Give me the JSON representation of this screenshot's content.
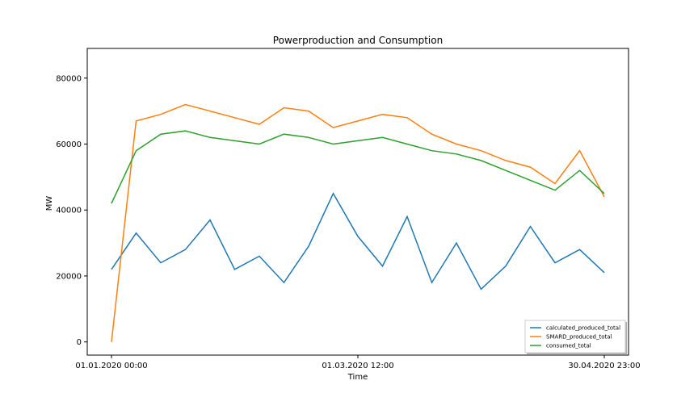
{
  "chart_data": {
    "type": "line",
    "title": "Powerproduction and Consumption",
    "xlabel": "Time",
    "ylabel": "MW",
    "x_ticks": [
      "01.01.2020 00:00",
      "01.03.2020 12:00",
      "30.04.2020 23:00"
    ],
    "x_range": [
      "01.01.2020 00:00",
      "30.04.2020 23:00"
    ],
    "y_ticks": [
      0,
      20000,
      40000,
      60000,
      80000
    ],
    "ylim": [
      -4000,
      89000
    ],
    "grid": false,
    "legend_position": "lower-right",
    "x_dates": [
      "2020-01-01",
      "2020-01-07",
      "2020-01-13",
      "2020-01-19",
      "2020-01-25",
      "2020-01-31",
      "2020-02-06",
      "2020-02-12",
      "2020-02-18",
      "2020-02-24",
      "2020-03-01",
      "2020-03-07",
      "2020-03-13",
      "2020-03-19",
      "2020-03-25",
      "2020-03-31",
      "2020-04-06",
      "2020-04-12",
      "2020-04-18",
      "2020-04-24",
      "2020-04-30"
    ],
    "series": [
      {
        "name": "calculated_produced_total",
        "color": "#1f77b4",
        "values": [
          22000,
          33000,
          24000,
          28000,
          37000,
          22000,
          26000,
          18000,
          29000,
          45000,
          32000,
          23000,
          38000,
          18000,
          30000,
          16000,
          23000,
          35000,
          24000,
          28000,
          21000
        ]
      },
      {
        "name": "SMARD_produced_total",
        "color": "#ff7f0e",
        "values": [
          0,
          67000,
          69000,
          72000,
          70000,
          68000,
          66000,
          71000,
          70000,
          65000,
          67000,
          69000,
          68000,
          63000,
          60000,
          58000,
          55000,
          53000,
          48000,
          58000,
          44000
        ]
      },
      {
        "name": "consumed_total",
        "color": "#2ca02c",
        "values": [
          42000,
          58000,
          63000,
          64000,
          62000,
          61000,
          60000,
          63000,
          62000,
          60000,
          61000,
          62000,
          60000,
          58000,
          57000,
          55000,
          52000,
          49000,
          46000,
          52000,
          45000
        ]
      }
    ]
  }
}
